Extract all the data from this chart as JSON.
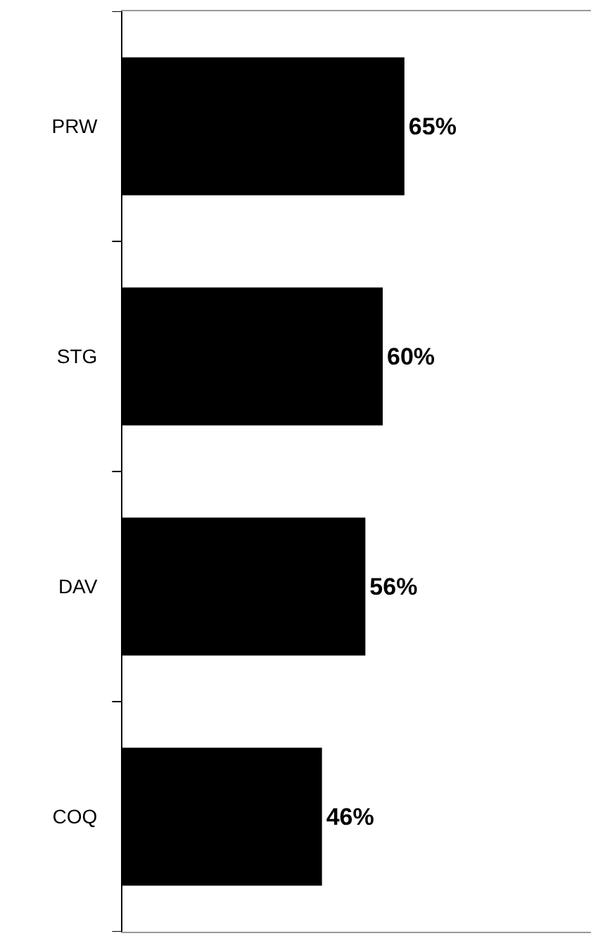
{
  "chart_data": {
    "type": "bar",
    "orientation": "horizontal",
    "categories": [
      "PRW",
      "STG",
      "DAV",
      "COQ"
    ],
    "values": [
      65,
      60,
      56,
      46
    ],
    "value_labels": [
      "65%",
      "60%",
      "56%",
      "46%"
    ],
    "color": "#000000",
    "xlim": [
      0,
      108
    ],
    "tick_labels": "y",
    "legend": false
  }
}
